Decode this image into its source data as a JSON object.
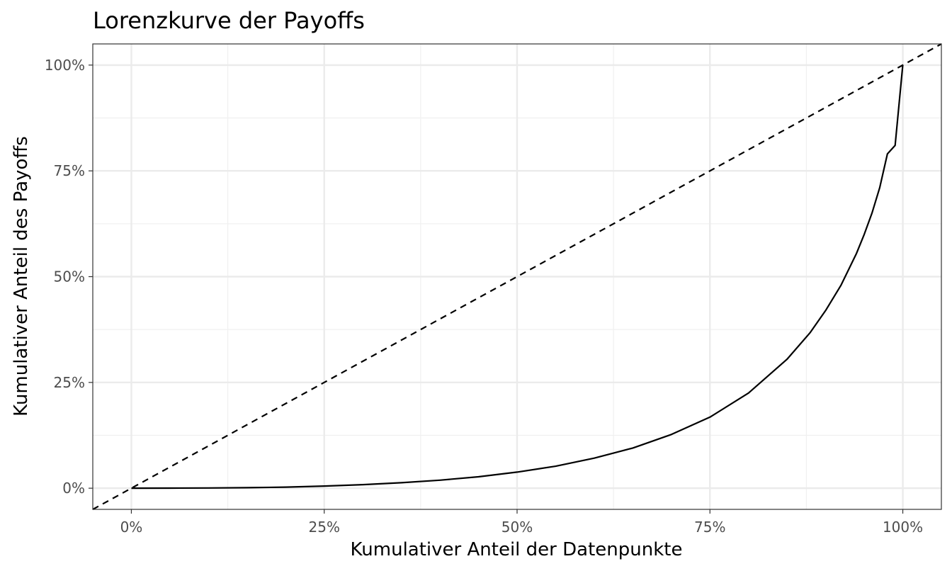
{
  "chart_data": {
    "type": "line",
    "title": "Lorenzkurve der Payoffs",
    "xlabel": "Kumulativer Anteil der Datenpunkte",
    "ylabel": "Kumulativer Anteil des Payoffs",
    "xlim": [
      -0.05,
      1.05
    ],
    "ylim": [
      -0.05,
      1.05
    ],
    "x_ticks": [
      0,
      0.25,
      0.5,
      0.75,
      1.0
    ],
    "x_tick_labels": [
      "0%",
      "25%",
      "50%",
      "75%",
      "100%"
    ],
    "y_ticks": [
      0,
      0.25,
      0.5,
      0.75,
      1.0
    ],
    "y_tick_labels": [
      "0%",
      "25%",
      "50%",
      "75%",
      "100%"
    ],
    "grid": true,
    "series": [
      {
        "style": "solid",
        "color": "#000000",
        "x": [
          0,
          0.05,
          0.1,
          0.15,
          0.2,
          0.25,
          0.3,
          0.35,
          0.4,
          0.45,
          0.5,
          0.55,
          0.6,
          0.65,
          0.7,
          0.75,
          0.8,
          0.85,
          0.88,
          0.9,
          0.92,
          0.94,
          0.95,
          0.96,
          0.97,
          0.98,
          0.99,
          1.0
        ],
        "y": [
          0,
          0.0003,
          0.0006,
          0.0012,
          0.0025,
          0.005,
          0.0085,
          0.013,
          0.019,
          0.027,
          0.038,
          0.052,
          0.071,
          0.095,
          0.127,
          0.168,
          0.225,
          0.305,
          0.368,
          0.42,
          0.48,
          0.555,
          0.6,
          0.65,
          0.71,
          0.79,
          0.81,
          1.0
        ]
      },
      {
        "style": "dashed",
        "color": "#000000",
        "x": [
          -0.05,
          1.05
        ],
        "y": [
          -0.05,
          1.05
        ]
      }
    ]
  }
}
